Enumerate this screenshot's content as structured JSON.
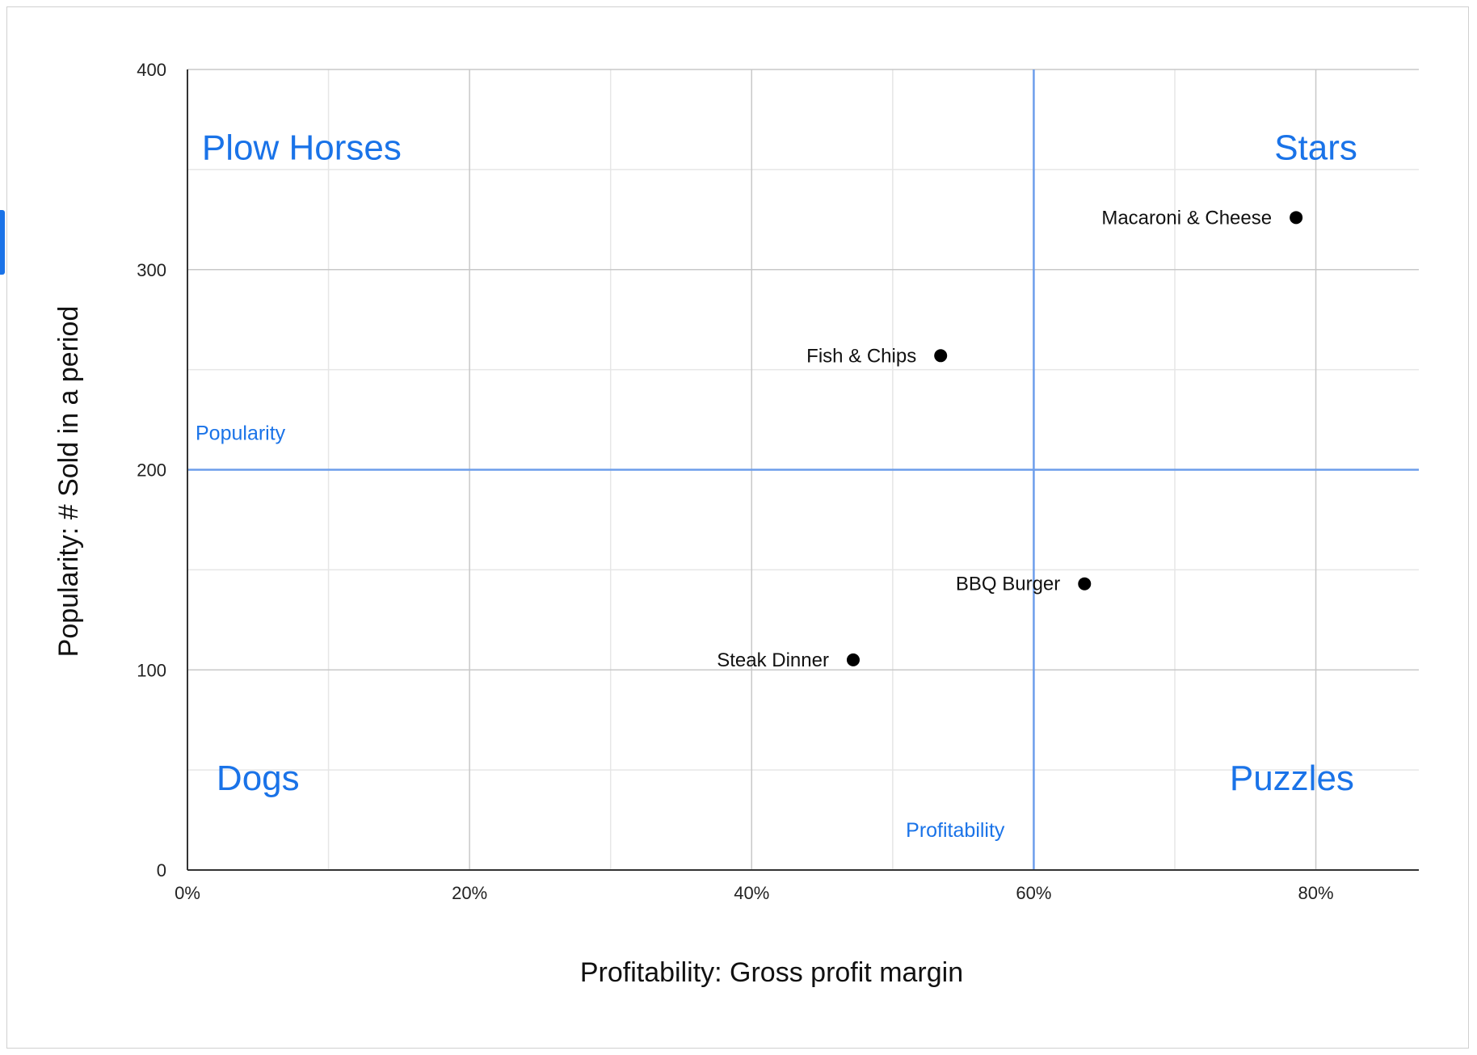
{
  "chart_data": {
    "type": "scatter",
    "xlabel": "Profitability: Gross profit margin",
    "ylabel": "Popularity: # Sold in a period",
    "xlim": [
      0,
      0.873
    ],
    "ylim": [
      0,
      400
    ],
    "x_ticks": [
      {
        "value": 0,
        "label": "0%"
      },
      {
        "value": 0.2,
        "label": "20%"
      },
      {
        "value": 0.4,
        "label": "40%"
      },
      {
        "value": 0.6,
        "label": "60%"
      },
      {
        "value": 0.8,
        "label": "80%"
      }
    ],
    "y_ticks": [
      {
        "value": 0,
        "label": "0"
      },
      {
        "value": 100,
        "label": "100"
      },
      {
        "value": 200,
        "label": "200"
      },
      {
        "value": 300,
        "label": "300"
      },
      {
        "value": 400,
        "label": "400"
      }
    ],
    "x_minor_gridlines": [
      0.1,
      0.3,
      0.5,
      0.7
    ],
    "y_minor_gridlines": [
      50,
      150,
      250,
      350
    ],
    "grid": true,
    "points": [
      {
        "label": "Macaroni & Cheese",
        "x": 0.786,
        "y": 326
      },
      {
        "label": "Fish & Chips",
        "x": 0.534,
        "y": 257
      },
      {
        "label": "BBQ Burger",
        "x": 0.636,
        "y": 143
      },
      {
        "label": "Steak Dinner",
        "x": 0.472,
        "y": 105
      }
    ],
    "reference_lines": [
      {
        "orientation": "horizontal",
        "value": 200,
        "label": "Popularity"
      },
      {
        "orientation": "vertical",
        "value": 0.6,
        "label": "Profitability"
      }
    ],
    "quadrant_labels": [
      {
        "text": "Plow Horses",
        "x": 0.081,
        "y": 355
      },
      {
        "text": "Stars",
        "x": 0.8,
        "y": 355
      },
      {
        "text": "Dogs",
        "x": 0.05,
        "y": 40
      },
      {
        "text": "Puzzles",
        "x": 0.783,
        "y": 40
      }
    ],
    "colors": {
      "points": "#000000",
      "reference": "#6d9eeb",
      "annotation": "#1a73e8",
      "grid_major": "#c8c8c8",
      "grid_minor": "#e6e6e6",
      "axis": "#333333"
    }
  }
}
